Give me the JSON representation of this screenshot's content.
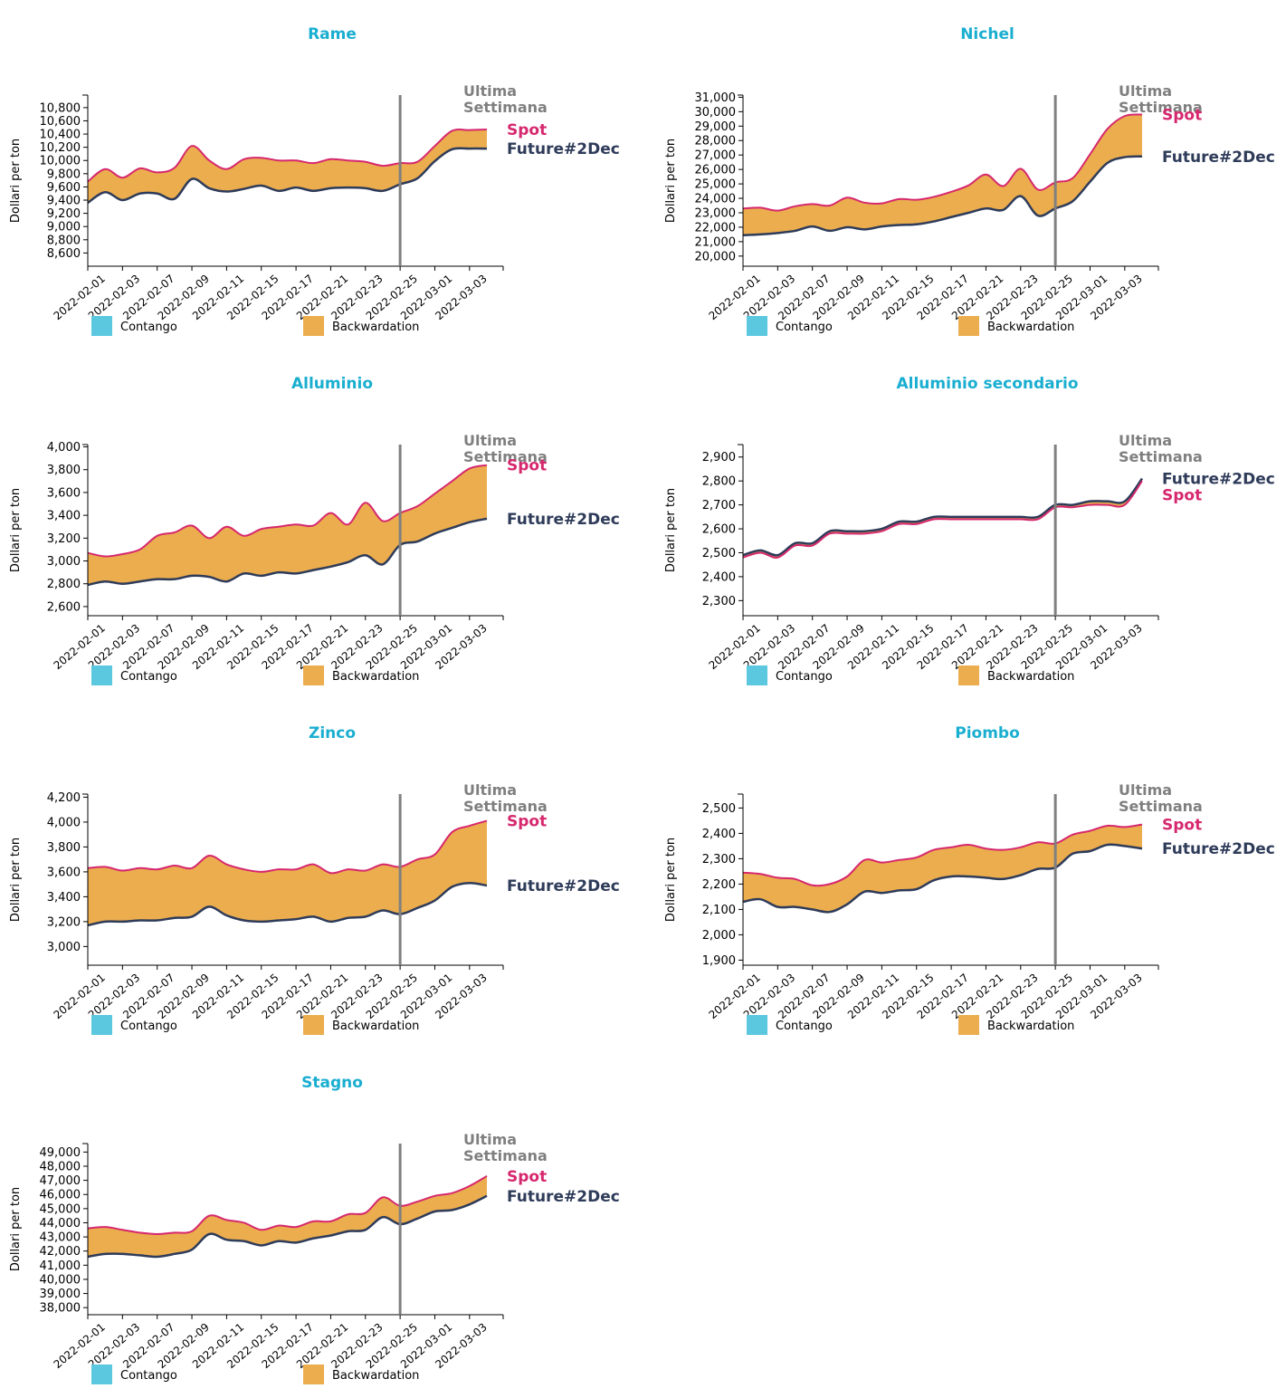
{
  "colors": {
    "title": "#1aaed0",
    "spot": "#d6286e",
    "future": "#2e3b59",
    "backwardation": "#ebad4e",
    "contango": "#5bc8df",
    "marker": "#808080",
    "marker_label": "#7f7f7f"
  },
  "chart_data": [
    {
      "type": "area",
      "title": "Rame",
      "ylabel": "Dollari per ton",
      "yticks": [
        8600,
        8800,
        9000,
        9200,
        9400,
        9600,
        9800,
        10000,
        10200,
        10400,
        10600,
        10800
      ],
      "ylim": [
        8400,
        10990
      ],
      "categories": [
        "2022-02-01",
        "2022-02-02",
        "2022-02-03",
        "2022-02-04",
        "2022-02-07",
        "2022-02-08",
        "2022-02-09",
        "2022-02-10",
        "2022-02-11",
        "2022-02-14",
        "2022-02-15",
        "2022-02-16",
        "2022-02-17",
        "2022-02-18",
        "2022-02-21",
        "2022-02-22",
        "2022-02-23",
        "2022-02-24",
        "2022-02-25",
        "2022-02-28",
        "2022-03-01",
        "2022-03-02",
        "2022-03-03",
        "2022-03-04"
      ],
      "xtick_labels": [
        "2022-02-01",
        "2022-02-03",
        "2022-02-07",
        "2022-02-09",
        "2022-02-11",
        "2022-02-15",
        "2022-02-17",
        "2022-02-21",
        "2022-02-23",
        "2022-02-25",
        "2022-03-01",
        "2022-03-03"
      ],
      "marker_date": "2022-02-25",
      "marker_label": [
        "Ultima",
        "Settimana"
      ],
      "series": [
        {
          "name": "Spot",
          "values": [
            9680,
            9870,
            9740,
            9880,
            9820,
            9890,
            10220,
            10000,
            9870,
            10020,
            10040,
            10000,
            10000,
            9960,
            10020,
            10000,
            9980,
            9920,
            9960,
            9980,
            10220,
            10450,
            10460,
            10470
          ]
        },
        {
          "name": "Future#2Dec",
          "values": [
            9360,
            9520,
            9400,
            9500,
            9500,
            9420,
            9720,
            9580,
            9530,
            9570,
            9620,
            9540,
            9590,
            9540,
            9580,
            9590,
            9580,
            9540,
            9640,
            9730,
            9990,
            10170,
            10180,
            10180
          ]
        }
      ],
      "legend": [
        "Contango",
        "Backwardation"
      ]
    },
    {
      "type": "area",
      "title": "Nichel",
      "ylabel": "Dollari per ton",
      "yticks": [
        20000,
        21000,
        22000,
        23000,
        24000,
        25000,
        26000,
        27000,
        28000,
        29000,
        30000,
        31000
      ],
      "ylim": [
        19300,
        31150
      ],
      "categories": [
        "2022-02-01",
        "2022-02-02",
        "2022-02-03",
        "2022-02-04",
        "2022-02-07",
        "2022-02-08",
        "2022-02-09",
        "2022-02-10",
        "2022-02-11",
        "2022-02-14",
        "2022-02-15",
        "2022-02-16",
        "2022-02-17",
        "2022-02-18",
        "2022-02-21",
        "2022-02-22",
        "2022-02-23",
        "2022-02-24",
        "2022-02-25",
        "2022-02-28",
        "2022-03-01",
        "2022-03-02",
        "2022-03-03",
        "2022-03-04"
      ],
      "xtick_labels": [
        "2022-02-01",
        "2022-02-03",
        "2022-02-07",
        "2022-02-09",
        "2022-02-11",
        "2022-02-15",
        "2022-02-17",
        "2022-02-21",
        "2022-02-23",
        "2022-02-25",
        "2022-03-01",
        "2022-03-03"
      ],
      "marker_date": "2022-02-25",
      "marker_label": [
        "Ultima",
        "Settimana"
      ],
      "series": [
        {
          "name": "Spot",
          "values": [
            23300,
            23350,
            23150,
            23450,
            23600,
            23500,
            24050,
            23700,
            23650,
            23950,
            23900,
            24100,
            24450,
            24900,
            25650,
            24850,
            26050,
            24600,
            25100,
            25400,
            27050,
            28800,
            29700,
            29800
          ]
        },
        {
          "name": "Future#2Dec",
          "values": [
            21450,
            21500,
            21600,
            21750,
            22050,
            21750,
            22000,
            21850,
            22050,
            22150,
            22200,
            22400,
            22700,
            23000,
            23300,
            23200,
            24150,
            22800,
            23300,
            23800,
            25150,
            26450,
            26850,
            26900
          ]
        }
      ],
      "legend": [
        "Contango",
        "Backwardation"
      ]
    },
    {
      "type": "area",
      "title": "Alluminio",
      "ylabel": "Dollari per ton",
      "yticks": [
        2600,
        2800,
        3000,
        3200,
        3400,
        3600,
        3800,
        4000
      ],
      "ylim": [
        2520,
        4020
      ],
      "categories": [
        "2022-02-01",
        "2022-02-02",
        "2022-02-03",
        "2022-02-04",
        "2022-02-07",
        "2022-02-08",
        "2022-02-09",
        "2022-02-10",
        "2022-02-11",
        "2022-02-14",
        "2022-02-15",
        "2022-02-16",
        "2022-02-17",
        "2022-02-18",
        "2022-02-21",
        "2022-02-22",
        "2022-02-23",
        "2022-02-24",
        "2022-02-25",
        "2022-02-28",
        "2022-03-01",
        "2022-03-02",
        "2022-03-03",
        "2022-03-04"
      ],
      "xtick_labels": [
        "2022-02-01",
        "2022-02-03",
        "2022-02-07",
        "2022-02-09",
        "2022-02-11",
        "2022-02-15",
        "2022-02-17",
        "2022-02-21",
        "2022-02-23",
        "2022-02-25",
        "2022-03-01",
        "2022-03-03"
      ],
      "marker_date": "2022-02-25",
      "marker_label": [
        "Ultima",
        "Settimana"
      ],
      "series": [
        {
          "name": "Spot",
          "values": [
            3070,
            3040,
            3060,
            3100,
            3220,
            3250,
            3310,
            3200,
            3300,
            3220,
            3280,
            3300,
            3320,
            3310,
            3420,
            3320,
            3510,
            3350,
            3420,
            3480,
            3590,
            3700,
            3810,
            3840
          ]
        },
        {
          "name": "Future#2Dec",
          "values": [
            2790,
            2820,
            2800,
            2820,
            2840,
            2840,
            2870,
            2860,
            2820,
            2890,
            2870,
            2900,
            2890,
            2920,
            2950,
            2990,
            3050,
            2970,
            3140,
            3170,
            3240,
            3290,
            3340,
            3370
          ]
        }
      ],
      "legend": [
        "Contango",
        "Backwardation"
      ]
    },
    {
      "type": "area",
      "title": "Alluminio secondario",
      "ylabel": "Dollari per ton",
      "yticks": [
        2300,
        2400,
        2500,
        2600,
        2700,
        2800,
        2900
      ],
      "ylim": [
        2237,
        2952
      ],
      "categories": [
        "2022-02-01",
        "2022-02-02",
        "2022-02-03",
        "2022-02-04",
        "2022-02-07",
        "2022-02-08",
        "2022-02-09",
        "2022-02-10",
        "2022-02-11",
        "2022-02-14",
        "2022-02-15",
        "2022-02-16",
        "2022-02-17",
        "2022-02-18",
        "2022-02-21",
        "2022-02-22",
        "2022-02-23",
        "2022-02-24",
        "2022-02-25",
        "2022-02-28",
        "2022-03-01",
        "2022-03-02",
        "2022-03-03",
        "2022-03-04"
      ],
      "xtick_labels": [
        "2022-02-01",
        "2022-02-03",
        "2022-02-07",
        "2022-02-09",
        "2022-02-11",
        "2022-02-15",
        "2022-02-17",
        "2022-02-21",
        "2022-02-23",
        "2022-02-25",
        "2022-03-01",
        "2022-03-03"
      ],
      "marker_date": "2022-02-25",
      "marker_label": [
        "Ultima",
        "Settimana"
      ],
      "series": [
        {
          "name": "Spot",
          "values": [
            2480,
            2500,
            2480,
            2530,
            2530,
            2580,
            2580,
            2580,
            2590,
            2620,
            2620,
            2640,
            2640,
            2640,
            2640,
            2640,
            2640,
            2640,
            2690,
            2690,
            2700,
            2700,
            2700,
            2800
          ]
        },
        {
          "name": "Future#2Dec",
          "values": [
            2490,
            2510,
            2490,
            2540,
            2540,
            2590,
            2590,
            2590,
            2600,
            2630,
            2630,
            2650,
            2650,
            2650,
            2650,
            2650,
            2650,
            2650,
            2700,
            2700,
            2715,
            2715,
            2715,
            2810
          ]
        }
      ],
      "legend": [
        "Contango",
        "Backwardation"
      ]
    },
    {
      "type": "area",
      "title": "Zinco",
      "ylabel": "Dollari per ton",
      "yticks": [
        3000,
        3200,
        3400,
        3600,
        3800,
        4000,
        4200
      ],
      "ylim": [
        2850,
        4225
      ],
      "categories": [
        "2022-02-01",
        "2022-02-02",
        "2022-02-03",
        "2022-02-04",
        "2022-02-07",
        "2022-02-08",
        "2022-02-09",
        "2022-02-10",
        "2022-02-11",
        "2022-02-14",
        "2022-02-15",
        "2022-02-16",
        "2022-02-17",
        "2022-02-18",
        "2022-02-21",
        "2022-02-22",
        "2022-02-23",
        "2022-02-24",
        "2022-02-25",
        "2022-02-28",
        "2022-03-01",
        "2022-03-02",
        "2022-03-03",
        "2022-03-04"
      ],
      "xtick_labels": [
        "2022-02-01",
        "2022-02-03",
        "2022-02-07",
        "2022-02-09",
        "2022-02-11",
        "2022-02-15",
        "2022-02-17",
        "2022-02-21",
        "2022-02-23",
        "2022-02-25",
        "2022-03-01",
        "2022-03-03"
      ],
      "marker_date": "2022-02-25",
      "marker_label": [
        "Ultima",
        "Settimana"
      ],
      "series": [
        {
          "name": "Spot",
          "values": [
            3630,
            3640,
            3610,
            3630,
            3620,
            3650,
            3630,
            3730,
            3660,
            3620,
            3600,
            3620,
            3620,
            3660,
            3590,
            3620,
            3610,
            3660,
            3640,
            3700,
            3740,
            3920,
            3970,
            4010
          ]
        },
        {
          "name": "Future#2Dec",
          "values": [
            3170,
            3200,
            3200,
            3210,
            3210,
            3230,
            3240,
            3320,
            3250,
            3210,
            3200,
            3210,
            3220,
            3240,
            3200,
            3230,
            3240,
            3290,
            3260,
            3310,
            3370,
            3480,
            3510,
            3490
          ]
        }
      ],
      "legend": [
        "Contango",
        "Backwardation"
      ]
    },
    {
      "type": "area",
      "title": "Piombo",
      "ylabel": "Dollari per ton",
      "yticks": [
        1900,
        2000,
        2100,
        2200,
        2300,
        2400,
        2500
      ],
      "ylim": [
        1880,
        2555
      ],
      "categories": [
        "2022-02-01",
        "2022-02-02",
        "2022-02-03",
        "2022-02-04",
        "2022-02-07",
        "2022-02-08",
        "2022-02-09",
        "2022-02-10",
        "2022-02-11",
        "2022-02-14",
        "2022-02-15",
        "2022-02-16",
        "2022-02-17",
        "2022-02-18",
        "2022-02-21",
        "2022-02-22",
        "2022-02-23",
        "2022-02-24",
        "2022-02-25",
        "2022-02-28",
        "2022-03-01",
        "2022-03-02",
        "2022-03-03",
        "2022-03-04"
      ],
      "xtick_labels": [
        "2022-02-01",
        "2022-02-03",
        "2022-02-07",
        "2022-02-09",
        "2022-02-11",
        "2022-02-15",
        "2022-02-17",
        "2022-02-21",
        "2022-02-23",
        "2022-02-25",
        "2022-03-01",
        "2022-03-03"
      ],
      "marker_date": "2022-02-25",
      "marker_label": [
        "Ultima",
        "Settimana"
      ],
      "series": [
        {
          "name": "Spot",
          "values": [
            2245,
            2240,
            2225,
            2220,
            2195,
            2200,
            2230,
            2295,
            2285,
            2295,
            2305,
            2335,
            2345,
            2355,
            2340,
            2335,
            2345,
            2365,
            2360,
            2395,
            2410,
            2430,
            2425,
            2435
          ]
        },
        {
          "name": "Future#2Dec",
          "values": [
            2130,
            2140,
            2110,
            2110,
            2100,
            2090,
            2120,
            2170,
            2165,
            2175,
            2180,
            2215,
            2230,
            2230,
            2225,
            2220,
            2235,
            2260,
            2265,
            2320,
            2330,
            2355,
            2350,
            2340
          ]
        }
      ],
      "legend": [
        "Contango",
        "Backwardation"
      ]
    },
    {
      "type": "area",
      "title": "Stagno",
      "ylabel": "Dollari per ton",
      "yticks": [
        38000,
        39000,
        40000,
        41000,
        42000,
        43000,
        44000,
        45000,
        46000,
        47000,
        48000,
        49000
      ],
      "ylim": [
        37500,
        49600
      ],
      "categories": [
        "2022-02-01",
        "2022-02-02",
        "2022-02-03",
        "2022-02-04",
        "2022-02-07",
        "2022-02-08",
        "2022-02-09",
        "2022-02-10",
        "2022-02-11",
        "2022-02-14",
        "2022-02-15",
        "2022-02-16",
        "2022-02-17",
        "2022-02-18",
        "2022-02-21",
        "2022-02-22",
        "2022-02-23",
        "2022-02-24",
        "2022-02-25",
        "2022-02-28",
        "2022-03-01",
        "2022-03-02",
        "2022-03-03",
        "2022-03-04"
      ],
      "xtick_labels": [
        "2022-02-01",
        "2022-02-03",
        "2022-02-07",
        "2022-02-09",
        "2022-02-11",
        "2022-02-15",
        "2022-02-17",
        "2022-02-21",
        "2022-02-23",
        "2022-02-25",
        "2022-03-01",
        "2022-03-03"
      ],
      "marker_date": "2022-02-25",
      "marker_label": [
        "Ultima",
        "Settimana"
      ],
      "series": [
        {
          "name": "Spot",
          "values": [
            43600,
            43700,
            43500,
            43300,
            43200,
            43300,
            43400,
            44500,
            44200,
            44000,
            43500,
            43800,
            43700,
            44100,
            44100,
            44600,
            44700,
            45800,
            45200,
            45500,
            45900,
            46100,
            46600,
            47300
          ]
        },
        {
          "name": "Future#2Dec",
          "values": [
            41600,
            41800,
            41800,
            41700,
            41600,
            41800,
            42100,
            43200,
            42800,
            42700,
            42400,
            42700,
            42600,
            42900,
            43100,
            43400,
            43500,
            44400,
            43900,
            44300,
            44800,
            44900,
            45300,
            45900
          ]
        }
      ],
      "legend": [
        "Contango",
        "Backwardation"
      ]
    }
  ]
}
